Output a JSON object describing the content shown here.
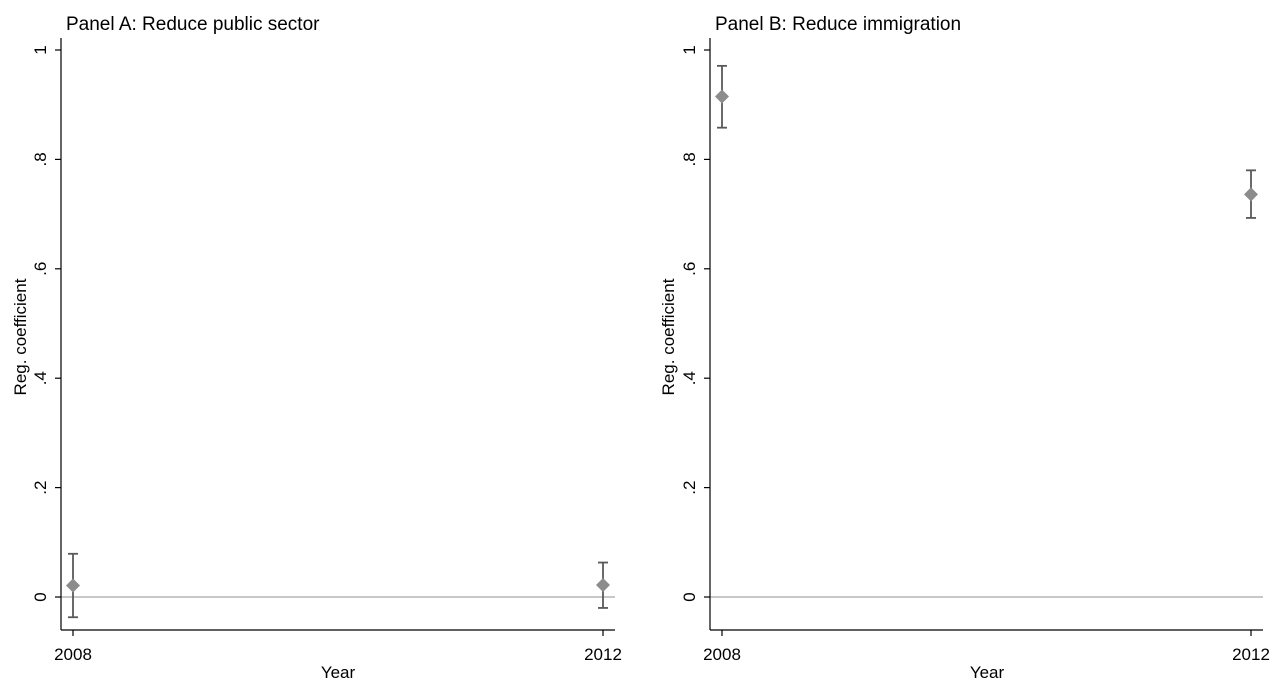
{
  "colors": {
    "background": "#ffffff",
    "axis": "#000000",
    "zero_line": "#c8c8c8",
    "marker": "#8c8c8c",
    "error_bar": "#595959"
  },
  "chart_data": [
    {
      "type": "scatter",
      "title": "Panel A: Reduce public sector",
      "xlabel": "Year",
      "ylabel": "Reg. coefficient",
      "x_ticks": [
        "2008",
        "2012"
      ],
      "y_ticks": [
        "0",
        ".2",
        ".4",
        ".6",
        ".8",
        "1"
      ],
      "ylim": [
        -0.06,
        1.02
      ],
      "reference_line": 0,
      "grid": false,
      "series": [
        {
          "marker": "diamond",
          "points": [
            {
              "x": "2008",
              "y": 0.021,
              "lo": -0.037,
              "hi": 0.079
            },
            {
              "x": "2012",
              "y": 0.022,
              "lo": -0.02,
              "hi": 0.063
            }
          ]
        }
      ]
    },
    {
      "type": "scatter",
      "title": "Panel B: Reduce immigration",
      "xlabel": "Year",
      "ylabel": "Reg. coefficient",
      "x_ticks": [
        "2008",
        "2012"
      ],
      "y_ticks": [
        "0",
        ".2",
        ".4",
        ".6",
        ".8",
        "1"
      ],
      "ylim": [
        -0.06,
        1.02
      ],
      "reference_line": 0,
      "grid": false,
      "series": [
        {
          "marker": "diamond",
          "points": [
            {
              "x": "2008",
              "y": 0.915,
              "lo": 0.858,
              "hi": 0.971
            },
            {
              "x": "2012",
              "y": 0.736,
              "lo": 0.693,
              "hi": 0.78
            }
          ]
        }
      ]
    }
  ]
}
